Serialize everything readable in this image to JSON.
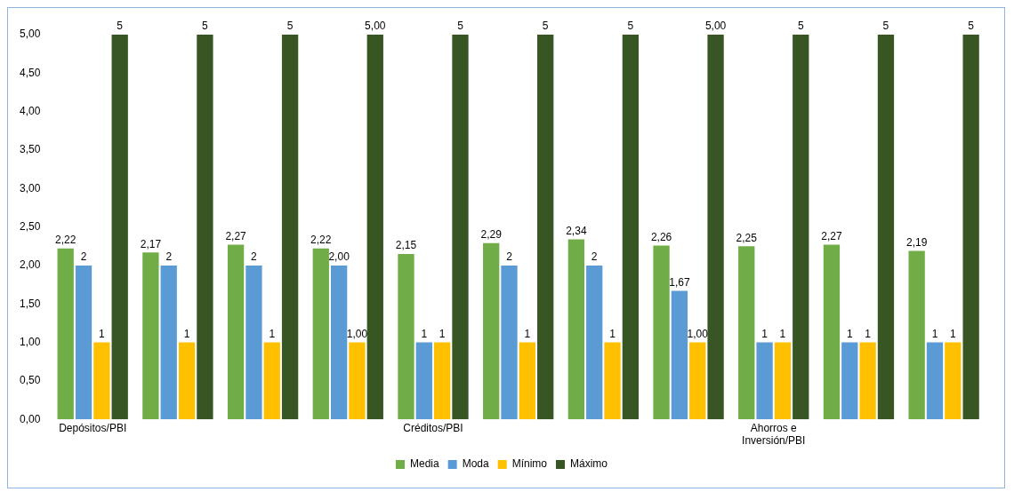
{
  "chart_data": {
    "type": "bar",
    "categories": [
      "Depósitos/PBI",
      null,
      null,
      null,
      "Créditos/PBI",
      null,
      null,
      null,
      "Ahorros e Inversión/PBI",
      null,
      null
    ],
    "series": [
      {
        "name": "Media",
        "color": "#70ad47",
        "values": [
          2.22,
          2.17,
          2.27,
          2.22,
          2.15,
          2.29,
          2.34,
          2.26,
          2.25,
          2.27,
          2.19
        ],
        "value_labels": [
          "2,22",
          "2,17",
          "2,27",
          "2,22",
          "2,15",
          "2,29",
          "2,34",
          "2,26",
          "2,25",
          "2,27",
          "2,19"
        ]
      },
      {
        "name": "Moda",
        "color": "#5b9bd5",
        "values": [
          2,
          2,
          2,
          2,
          1,
          2,
          2,
          1.67,
          1,
          1,
          1
        ],
        "value_labels": [
          "2",
          "2",
          "2",
          "2,00",
          "1",
          "2",
          "2",
          "1,67",
          "1",
          "1",
          "1"
        ]
      },
      {
        "name": "Mínimo",
        "color": "#ffc000",
        "values": [
          1,
          1,
          1,
          1,
          1,
          1,
          1,
          1,
          1,
          1,
          1
        ],
        "value_labels": [
          "1",
          "1",
          "1",
          "1,00",
          "1",
          "1",
          "1",
          "1,00",
          "1",
          "1",
          "1"
        ]
      },
      {
        "name": "Máximo",
        "color": "#375623",
        "values": [
          5,
          5,
          5,
          5,
          5,
          5,
          5,
          5,
          5,
          5,
          5
        ],
        "value_labels": [
          "5",
          "5",
          "5",
          "5,00",
          "5",
          "5",
          "5",
          "5,00",
          "5",
          "5",
          "5"
        ]
      }
    ],
    "ylim": [
      0,
      5
    ],
    "yticks": [
      {
        "value": 0,
        "label": "0,00"
      },
      {
        "value": 0.5,
        "label": "0,50"
      },
      {
        "value": 1,
        "label": "1,00"
      },
      {
        "value": 1.5,
        "label": "1,50"
      },
      {
        "value": 2,
        "label": "2,00"
      },
      {
        "value": 2.5,
        "label": "2,50"
      },
      {
        "value": 3,
        "label": "3,00"
      },
      {
        "value": 3.5,
        "label": "3,50"
      },
      {
        "value": 4,
        "label": "4,00"
      },
      {
        "value": 4.5,
        "label": "4,50"
      },
      {
        "value": 5,
        "label": "5,00"
      }
    ],
    "grid": false,
    "legend": "bottom"
  }
}
